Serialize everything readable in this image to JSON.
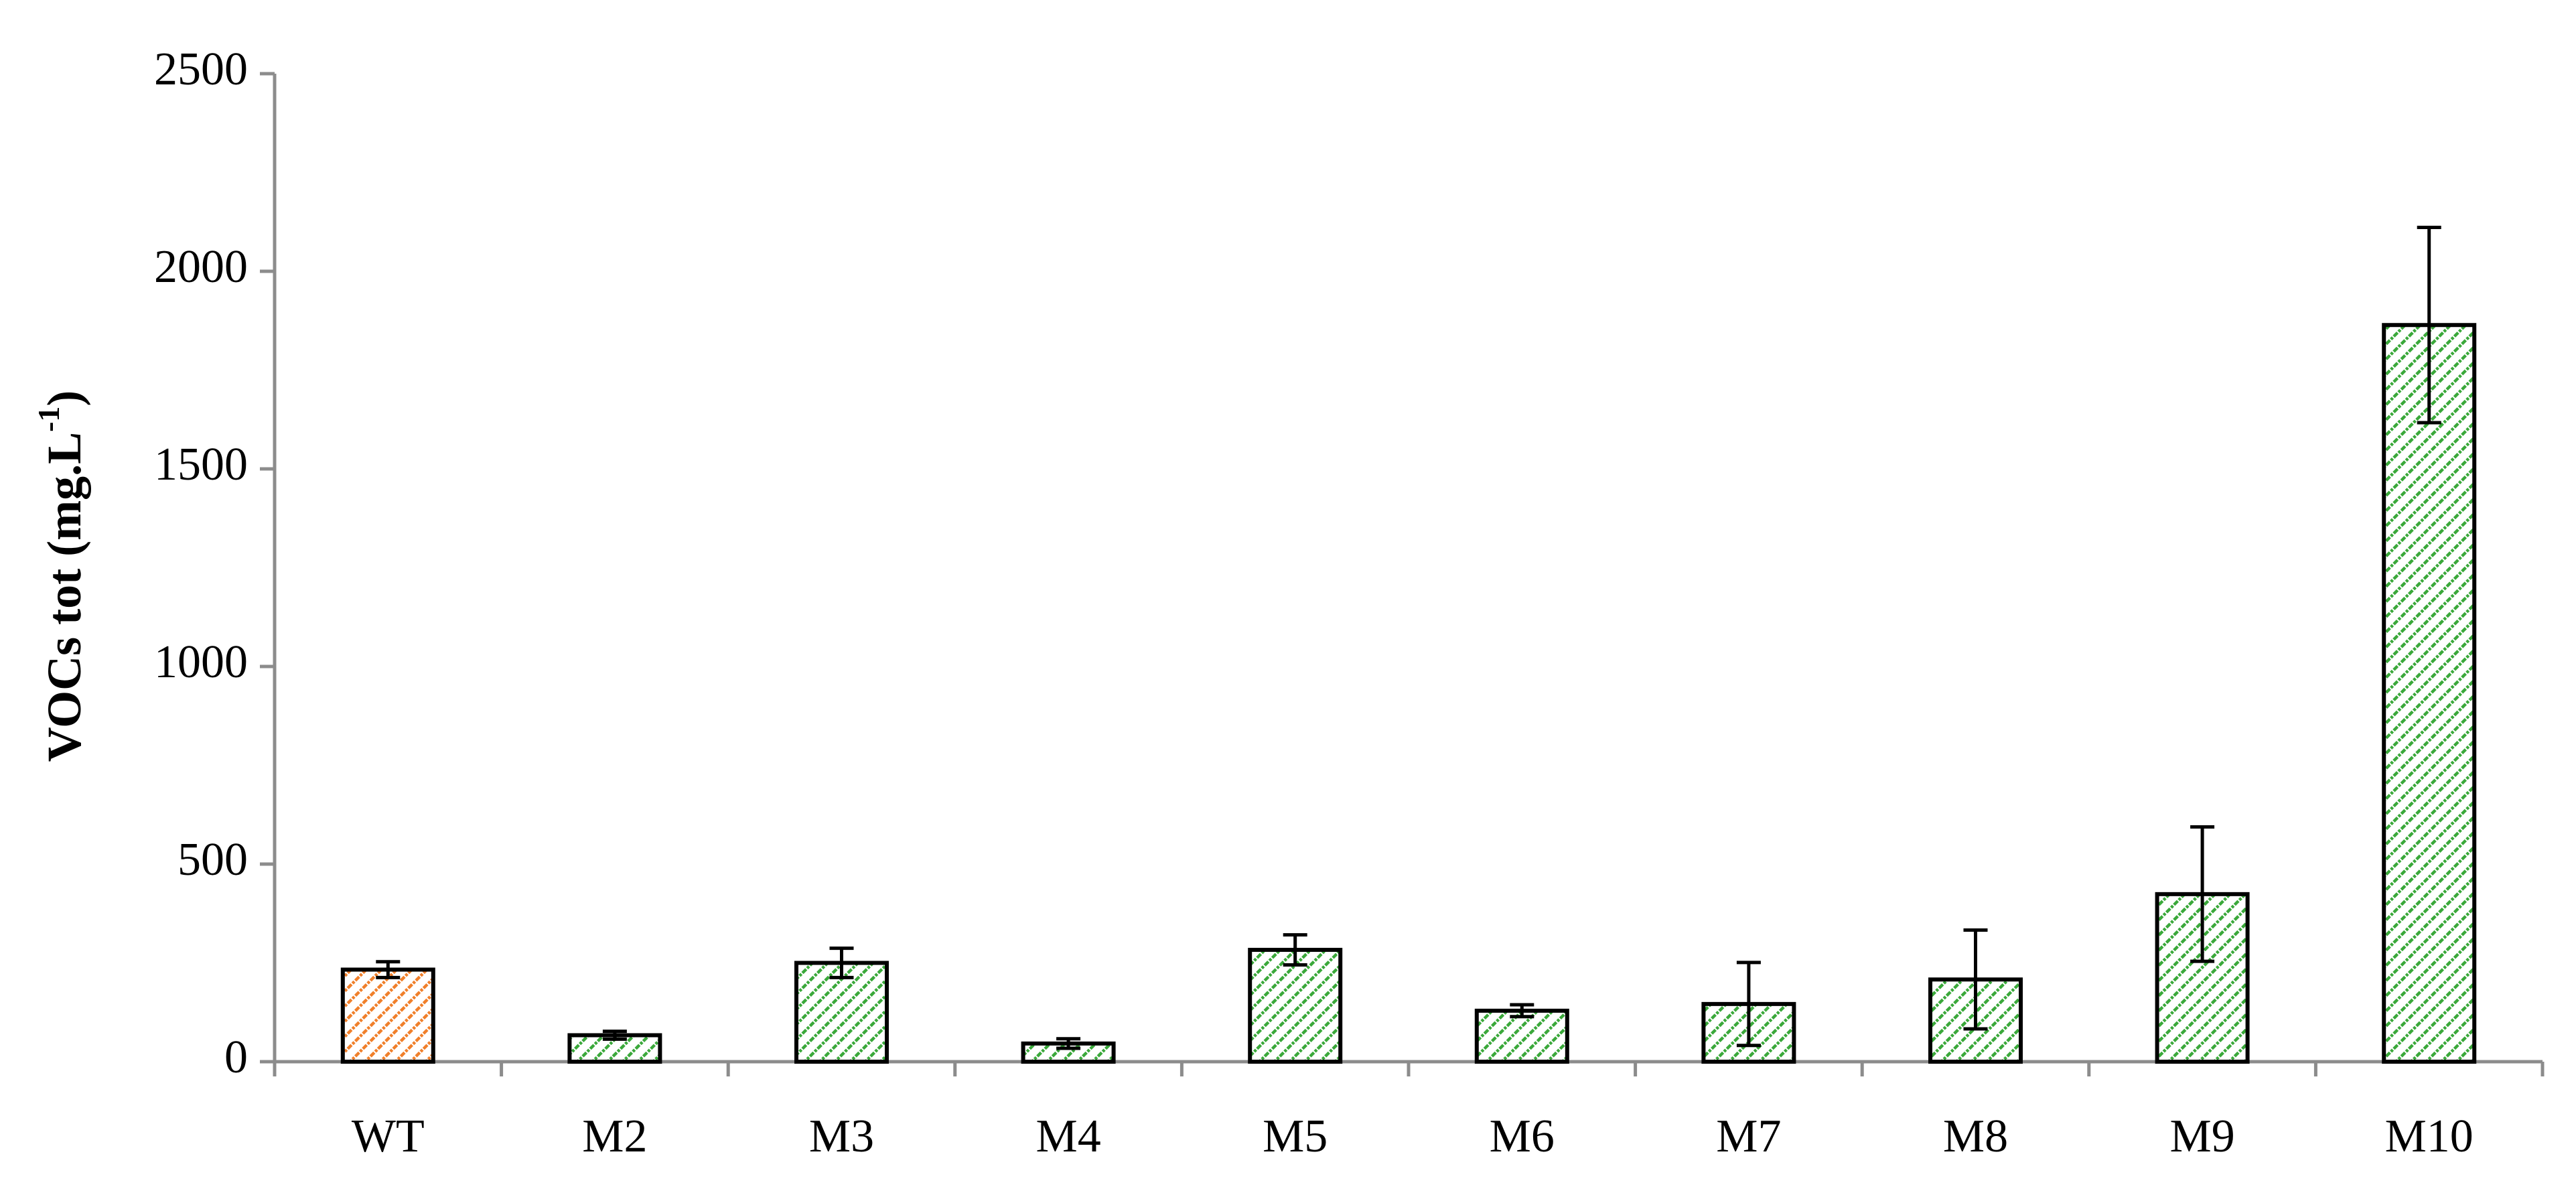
{
  "chart_data": {
    "type": "bar",
    "y_label": [
      "VOCs tot (mg.L",
      "-1",
      ")"
    ],
    "categories": [
      "WT",
      "M2",
      "M3",
      "M4",
      "M5",
      "M6",
      "M7",
      "M8",
      "M9",
      "M10"
    ],
    "series": [
      {
        "values": [
          233,
          67,
          250,
          46,
          283,
          129,
          146,
          208,
          424,
          1864
        ],
        "errors": [
          20,
          10,
          37,
          12,
          38,
          15,
          105,
          125,
          170,
          247
        ],
        "colors": [
          "#f07f2a",
          "#3aa83a",
          "#3aa83a",
          "#3aa83a",
          "#3aa83a",
          "#3aa83a",
          "#3aa83a",
          "#3aa83a",
          "#3aa83a",
          "#3aa83a"
        ]
      }
    ],
    "ylim": [
      0,
      2500
    ],
    "yticks": [
      0,
      500,
      1000,
      1500,
      2000,
      2500
    ],
    "grid": false
  }
}
